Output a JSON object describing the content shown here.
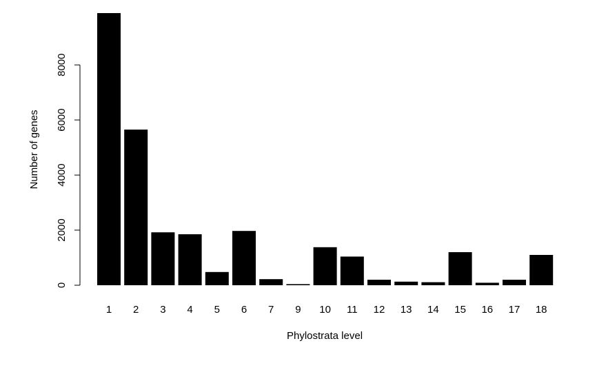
{
  "chart_data": {
    "type": "bar",
    "title": "",
    "xlabel": "Phylostrata level",
    "ylabel": "Number of genes",
    "categories": [
      "1",
      "2",
      "3",
      "4",
      "5",
      "6",
      "7",
      "9",
      "10",
      "11",
      "12",
      "13",
      "14",
      "15",
      "16",
      "17",
      "18"
    ],
    "values": [
      9880,
      5650,
      1920,
      1850,
      480,
      1970,
      220,
      40,
      1380,
      1040,
      200,
      130,
      110,
      1200,
      90,
      200,
      1100
    ],
    "ylim": [
      0,
      9880
    ],
    "yticks": [
      "0",
      "2000",
      "4000",
      "6000",
      "8000"
    ],
    "bar_color": "#000000",
    "grid": false,
    "legend": "none"
  }
}
